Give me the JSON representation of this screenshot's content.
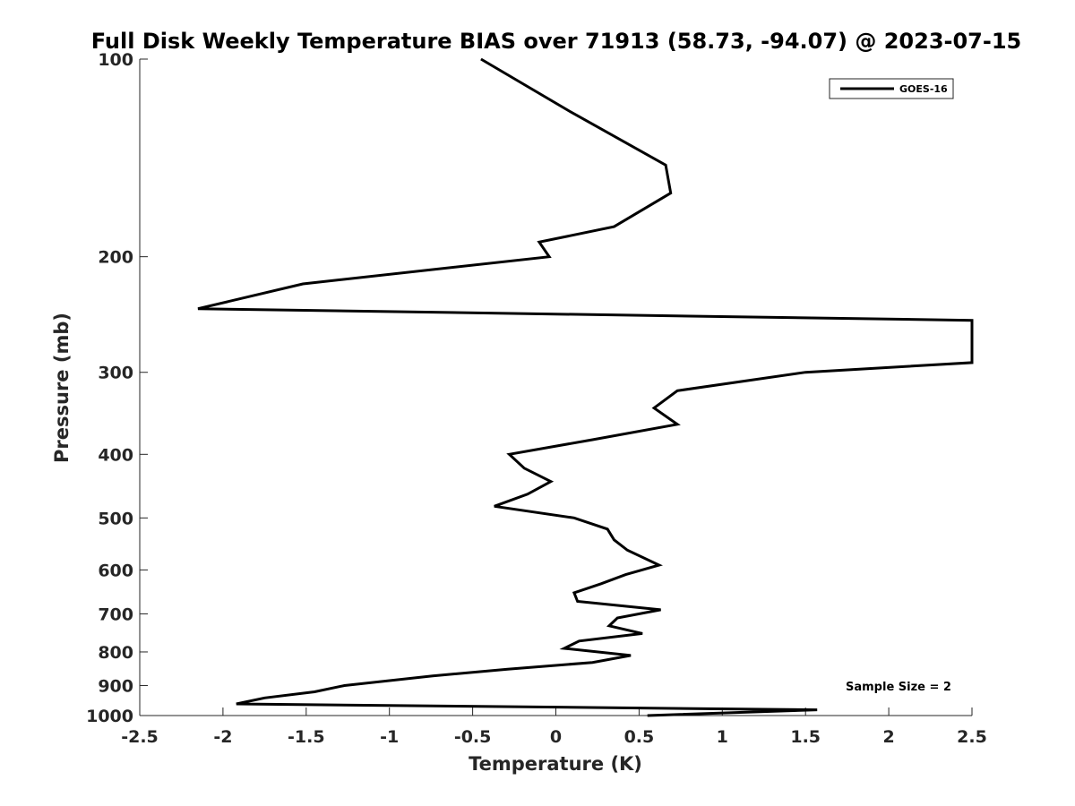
{
  "chart_data": {
    "type": "line",
    "title": "Full Disk Weekly Temperature BIAS over 71913 (58.73, -94.07) @ 2023-07-15",
    "xlabel": "Temperature (K)",
    "ylabel": "Pressure (mb)",
    "xlim": [
      -2.5,
      2.5
    ],
    "ylim": [
      1000,
      100
    ],
    "y_scale": "log",
    "grid": false,
    "x_ticks": [
      -2.5,
      -2,
      -1.5,
      -1,
      -0.5,
      0,
      0.5,
      1,
      1.5,
      2,
      2.5
    ],
    "x_tick_labels": [
      "-2.5",
      "-2",
      "-1.5",
      "-1",
      "-0.5",
      "0",
      "0.5",
      "1",
      "1.5",
      "2",
      "2.5"
    ],
    "y_ticks": [
      100,
      200,
      300,
      400,
      500,
      600,
      700,
      800,
      900,
      1000
    ],
    "y_tick_labels": [
      "100",
      "200",
      "300",
      "400",
      "500",
      "600",
      "700",
      "800",
      "900",
      "1000"
    ],
    "legend_position": "top-right",
    "annotation": "Sample Size = 2",
    "series": [
      {
        "name": "GOES-16",
        "color": "#000000",
        "x": [
          -0.45,
          0.08,
          0.66,
          0.69,
          0.35,
          -0.1,
          -0.04,
          -1.52,
          -2.15,
          2.5,
          2.5,
          1.5,
          0.73,
          0.59,
          0.73,
          0.22,
          -0.28,
          -0.19,
          -0.03,
          -0.17,
          -0.37,
          0.11,
          0.31,
          0.35,
          0.43,
          0.62,
          0.42,
          0.27,
          0.11,
          0.13,
          0.63,
          0.37,
          0.32,
          0.52,
          0.14,
          0.05,
          0.45,
          0.22,
          -0.29,
          -0.74,
          -1.27,
          -1.45,
          -1.75,
          -1.92,
          1.57,
          0.55
        ],
        "y": [
          100,
          120,
          145,
          160,
          180,
          190,
          200,
          220,
          240,
          250,
          290,
          300,
          320,
          340,
          360,
          380,
          400,
          420,
          440,
          460,
          480,
          500,
          520,
          540,
          560,
          590,
          610,
          630,
          650,
          670,
          690,
          710,
          730,
          750,
          770,
          790,
          810,
          830,
          850,
          870,
          900,
          920,
          940,
          960,
          980,
          1000
        ]
      }
    ]
  }
}
